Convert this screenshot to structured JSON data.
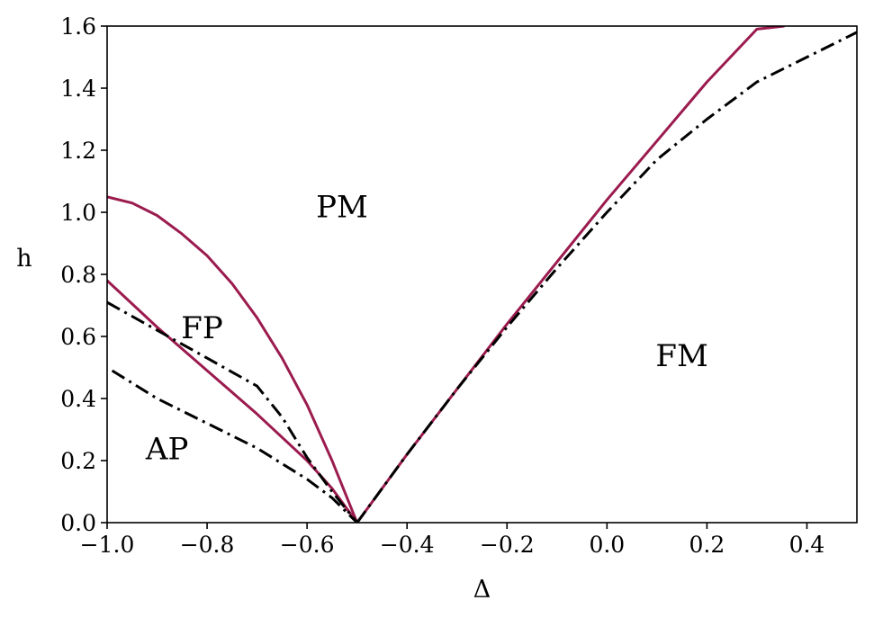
{
  "chart_data": {
    "type": "line",
    "xlabel": "Δ",
    "ylabel": "h",
    "xlim": [
      -1.0,
      0.5
    ],
    "ylim": [
      0.0,
      1.6
    ],
    "xticks": [
      "−1.0",
      "−0.8",
      "−0.6",
      "−0.4",
      "−0.2",
      "0.0",
      "0.2",
      "0.4"
    ],
    "xtick_values": [
      -1.0,
      -0.8,
      -0.6,
      -0.4,
      -0.2,
      0.0,
      0.2,
      0.4
    ],
    "yticks": [
      "0.0",
      "0.2",
      "0.4",
      "0.6",
      "0.8",
      "1.0",
      "1.2",
      "1.4",
      "1.6"
    ],
    "ytick_values": [
      0.0,
      0.2,
      0.4,
      0.6,
      0.8,
      1.0,
      1.2,
      1.4,
      1.6
    ],
    "grid": false,
    "legend": "none",
    "colors": {
      "solid": "#9b1b4e",
      "dashdot": "#000000"
    },
    "series": [
      {
        "style": "solid",
        "x": [
          -1.0,
          -0.95,
          -0.9,
          -0.85,
          -0.8,
          -0.75,
          -0.7,
          -0.65,
          -0.6,
          -0.55,
          -0.5
        ],
        "y": [
          1.05,
          1.03,
          0.99,
          0.93,
          0.86,
          0.77,
          0.66,
          0.53,
          0.38,
          0.2,
          0.0
        ]
      },
      {
        "style": "solid",
        "x": [
          -1.0,
          -0.9,
          -0.8,
          -0.7,
          -0.6,
          -0.55,
          -0.5
        ],
        "y": [
          0.78,
          0.63,
          0.49,
          0.35,
          0.2,
          0.11,
          0.0
        ]
      },
      {
        "style": "solid",
        "x": [
          -0.5,
          -0.4,
          -0.3,
          -0.2,
          -0.1,
          0.0,
          0.1,
          0.2,
          0.3,
          0.355
        ],
        "y": [
          0.0,
          0.22,
          0.43,
          0.64,
          0.84,
          1.04,
          1.23,
          1.42,
          1.59,
          1.6
        ]
      },
      {
        "style": "dashdot",
        "x": [
          -1.0,
          -0.9,
          -0.8,
          -0.7,
          -0.65,
          -0.6,
          -0.55,
          -0.5
        ],
        "y": [
          0.71,
          0.62,
          0.53,
          0.44,
          0.34,
          0.21,
          0.1,
          0.0
        ]
      },
      {
        "style": "dashdot",
        "x": [
          -0.99,
          -0.9,
          -0.8,
          -0.7,
          -0.6,
          -0.55,
          -0.5
        ],
        "y": [
          0.49,
          0.4,
          0.32,
          0.24,
          0.14,
          0.08,
          0.0
        ]
      },
      {
        "style": "dashdot",
        "x": [
          -0.5,
          -0.4,
          -0.3,
          -0.2,
          -0.1,
          0.0,
          0.1,
          0.2,
          0.3,
          0.4,
          0.5
        ],
        "y": [
          0.0,
          0.22,
          0.43,
          0.63,
          0.82,
          1.0,
          1.17,
          1.3,
          1.42,
          1.5,
          1.58
        ]
      }
    ],
    "annotations": [
      {
        "text": "PM",
        "x": -0.53,
        "y": 1.01
      },
      {
        "text": "FP",
        "x": -0.81,
        "y": 0.62
      },
      {
        "text": "FM",
        "x": 0.15,
        "y": 0.53
      },
      {
        "text": "AP",
        "x": -0.88,
        "y": 0.23
      }
    ]
  }
}
